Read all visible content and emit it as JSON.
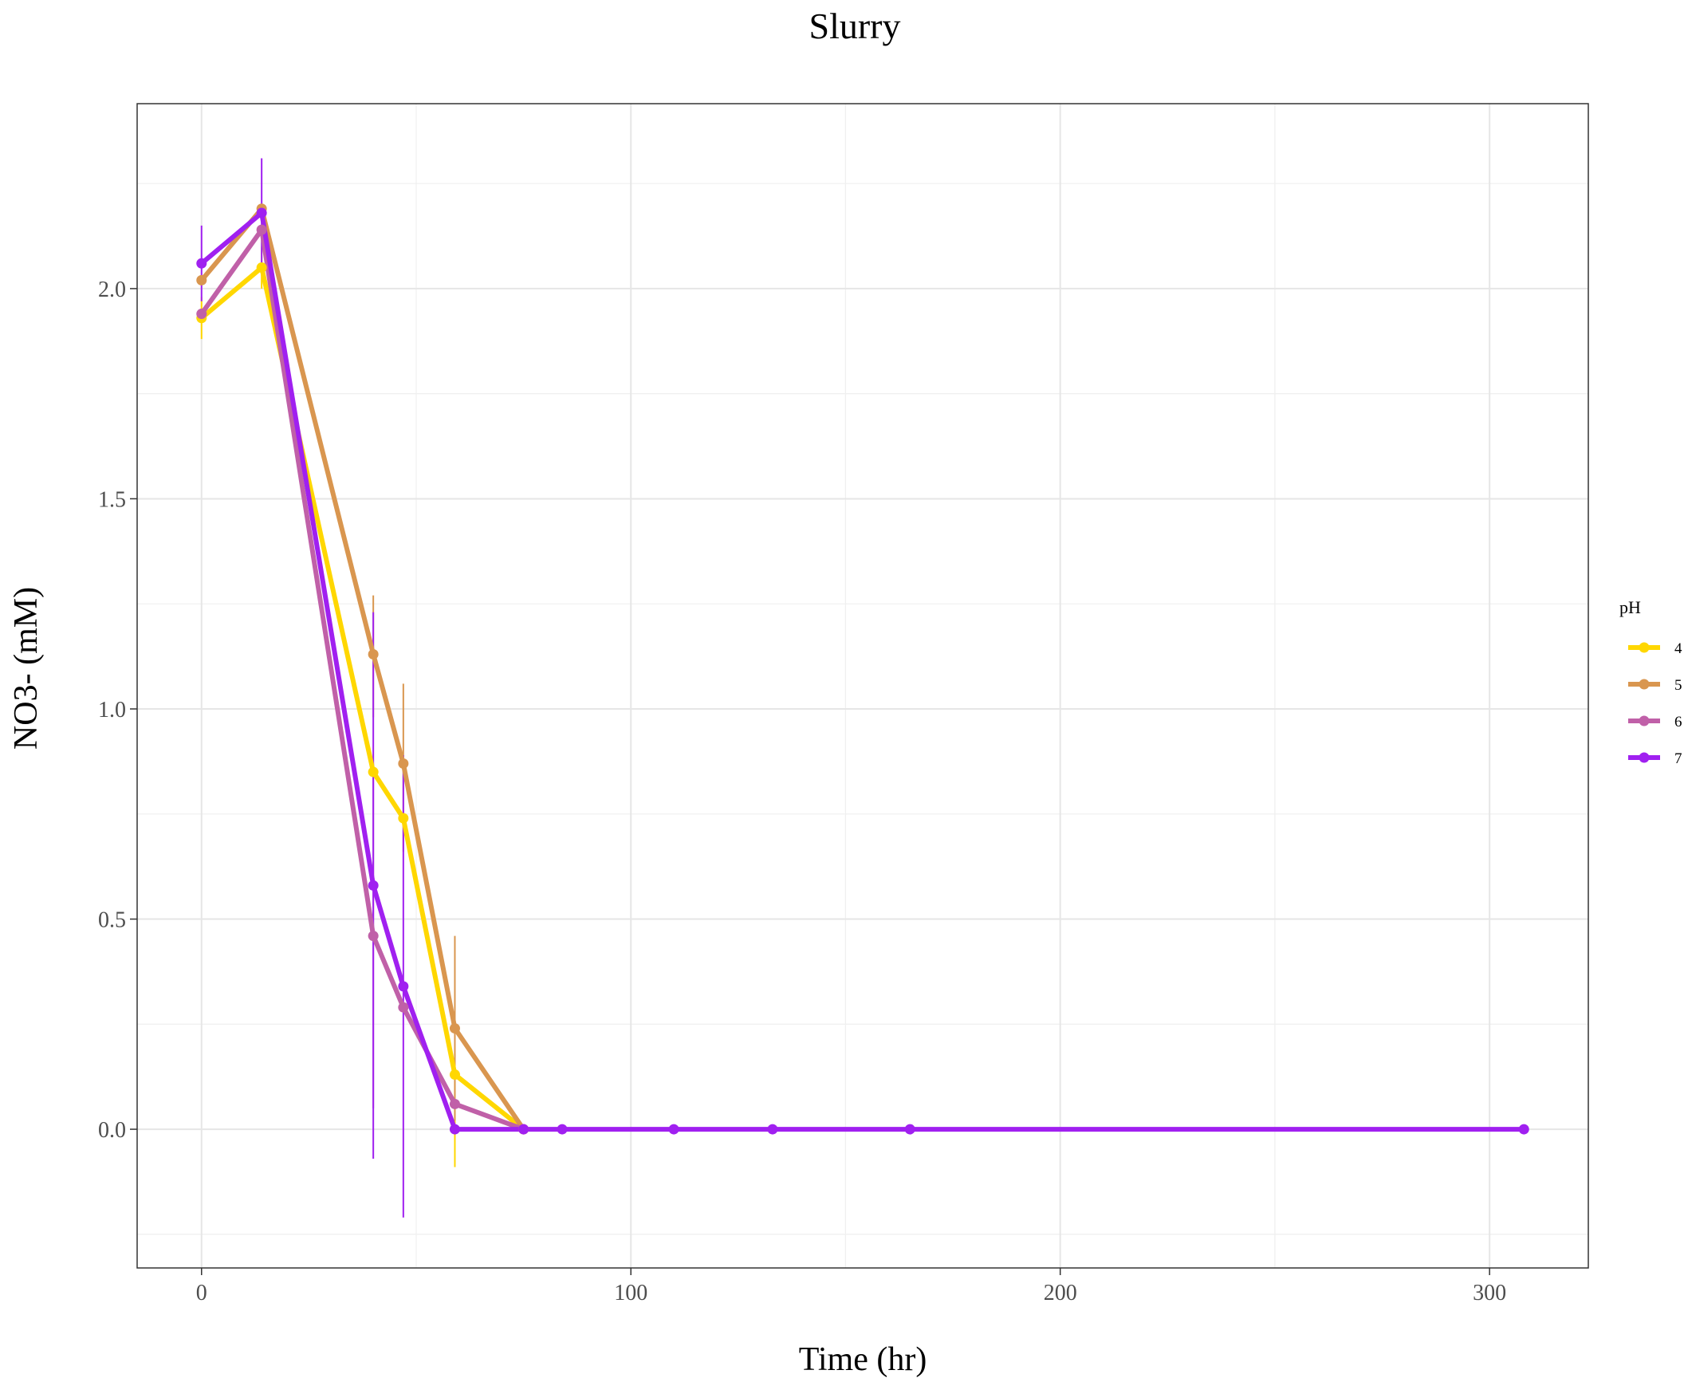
{
  "chart_data": {
    "type": "line",
    "title": "Slurry",
    "xlabel": "Time (hr)",
    "ylabel": "NO3- (mM)",
    "xlim": [
      -15,
      323
    ],
    "ylim": [
      -0.33,
      2.44
    ],
    "x_ticks": [
      0,
      100,
      200,
      300
    ],
    "y_ticks": [
      0.0,
      0.5,
      1.0,
      1.5,
      2.0
    ],
    "x_tick_labels": [
      "0",
      "100",
      "200",
      "300"
    ],
    "y_tick_labels": [
      "0.0",
      "0.5",
      "1.0",
      "1.5",
      "2.0"
    ],
    "grid": true,
    "legend": {
      "title": "pH",
      "position": "right"
    },
    "series": [
      {
        "name": "4",
        "color": "#FFD700",
        "x": [
          0,
          14,
          40,
          47,
          59,
          75
        ],
        "y": [
          1.93,
          2.05,
          0.85,
          0.74,
          0.13,
          0.0
        ],
        "err_low": [
          1.88,
          2.0,
          0.85,
          0.74,
          -0.09,
          0.0
        ],
        "err_high": [
          1.98,
          2.1,
          0.85,
          0.74,
          0.18,
          0.0
        ]
      },
      {
        "name": "5",
        "color": "#D9964F",
        "x": [
          0,
          14,
          40,
          47,
          59,
          75
        ],
        "y": [
          2.02,
          2.19,
          1.13,
          0.87,
          0.24,
          0.0
        ],
        "err_low": [
          2.02,
          2.19,
          0.98,
          0.66,
          0.02,
          0.0
        ],
        "err_high": [
          2.02,
          2.19,
          1.27,
          1.06,
          0.46,
          0.0
        ]
      },
      {
        "name": "6",
        "color": "#C060A8",
        "x": [
          0,
          14,
          40,
          47,
          59,
          75
        ],
        "y": [
          1.94,
          2.14,
          0.46,
          0.29,
          0.06,
          0.0
        ],
        "err_low": [
          1.94,
          2.14,
          0.05,
          0.29,
          0.06,
          0.0
        ],
        "err_high": [
          1.94,
          2.14,
          0.87,
          0.29,
          0.06,
          0.0
        ]
      },
      {
        "name": "7",
        "color": "#A020F0",
        "x": [
          0,
          14,
          40,
          47,
          59,
          75,
          84,
          110,
          133,
          165,
          308
        ],
        "y": [
          2.06,
          2.18,
          0.58,
          0.34,
          0.0,
          0.0,
          0.0,
          0.0,
          0.0,
          0.0,
          0.0
        ],
        "err_low": [
          1.97,
          2.05,
          -0.07,
          -0.21,
          0.0,
          0.0,
          0.0,
          0.0,
          0.0,
          0.0,
          0.0
        ],
        "err_high": [
          2.15,
          2.31,
          1.23,
          0.89,
          0.0,
          0.0,
          0.0,
          0.0,
          0.0,
          0.0,
          0.0
        ]
      }
    ]
  }
}
